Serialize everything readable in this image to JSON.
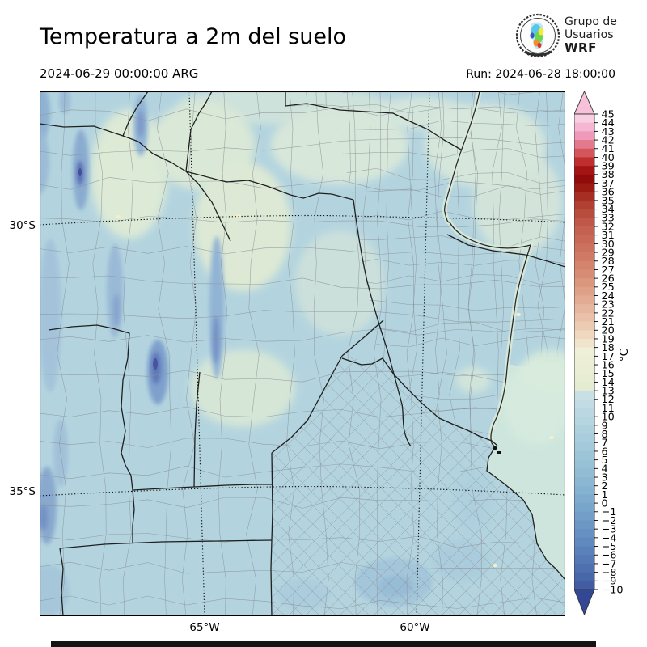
{
  "header": {
    "title": "Temperatura a 2m del suelo",
    "valid_time": "2024-06-29 00:00:00 ARG",
    "run_time": "Run: 2024-06-28 18:00:00"
  },
  "logo": {
    "line1": "Grupo de",
    "line2": "Usuarios",
    "line3": "WRF"
  },
  "map": {
    "lat_labels": [
      "30°S",
      "35°S"
    ],
    "lon_labels": [
      "65°W",
      "60°W"
    ]
  },
  "colorbar": {
    "unit_label": "°C",
    "tick_max": 45,
    "tick_min": -10,
    "ticks": [
      45,
      44,
      43,
      42,
      41,
      40,
      39,
      38,
      37,
      36,
      35,
      34,
      33,
      32,
      31,
      30,
      29,
      28,
      27,
      26,
      25,
      24,
      23,
      22,
      21,
      20,
      19,
      18,
      17,
      16,
      15,
      14,
      13,
      12,
      11,
      10,
      9,
      8,
      7,
      6,
      5,
      4,
      3,
      2,
      1,
      0,
      -1,
      -2,
      -3,
      -4,
      -5,
      -6,
      -7,
      -8,
      -9,
      -10
    ],
    "segment_colors": [
      "#f8cfe1",
      "#f4b6d1",
      "#ef9ab8",
      "#e3798c",
      "#d4555c",
      "#bf2f2f",
      "#a51414",
      "#900b0b",
      "#9b1b13",
      "#a72e22",
      "#b04031",
      "#b84d3e",
      "#bf5849",
      "#c46151",
      "#c86957",
      "#cc715e",
      "#d07a66",
      "#d4836d",
      "#d78c75",
      "#db967e",
      "#dfa088",
      "#e3ab93",
      "#e6b69e",
      "#e9c0a8",
      "#eccbb3",
      "#f0d7bf",
      "#f1e4cd",
      "#eff0d9",
      "#ecefd6",
      "#e9eed4",
      "#e6edd2",
      "#e3ecd0",
      "#c8e0e5",
      "#c1dce4",
      "#bbd8e2",
      "#b5d5e0",
      "#afd1de",
      "#a9cddc",
      "#a3c9da",
      "#9dc5d8",
      "#97c1d6",
      "#91bcd4",
      "#8bb7d2",
      "#85b2d0",
      "#7facce",
      "#78a5ca",
      "#729ec7",
      "#6c97c4",
      "#6690c1",
      "#6089bd",
      "#5a81b9",
      "#5479b4",
      "#4e70af",
      "#4867a9",
      "#425da3"
    ],
    "arrow_top_color": "#f6c1d9",
    "arrow_bottom_color": "#334795"
  },
  "chart_data": {
    "type": "heatmap",
    "title": "Temperatura a 2m del suelo",
    "unit": "°C",
    "valid_time": "2024-06-29 00:00:00 ARG",
    "model_run": "2024-06-28 18:00:00",
    "colorbar_range": [
      -10,
      45
    ],
    "colorbar_tick_step": 1,
    "lat_gridlines": [
      "30°S",
      "35°S"
    ],
    "lon_gridlines": [
      "65°W",
      "60°W"
    ],
    "field_values_c": {
      "dominant_plains": [
        6,
        12
      ],
      "pale_green_warm_patches": [
        13,
        18
      ],
      "western_mountain_ridges": [
        -4,
        4
      ],
      "coldest_indigo_spots": [
        -10,
        -6
      ],
      "rio_de_la_plata_water": [
        13,
        16
      ]
    }
  }
}
